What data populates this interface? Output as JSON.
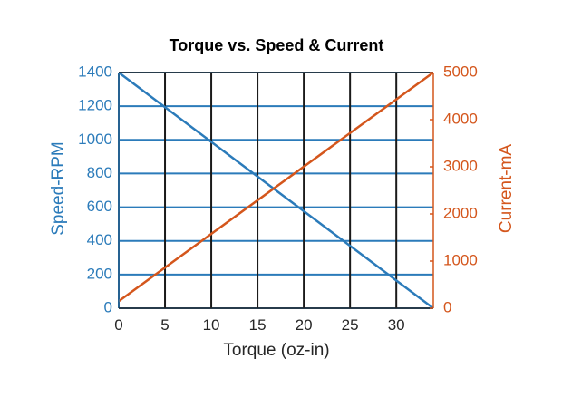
{
  "chart_data": {
    "type": "line",
    "title": "Torque vs. Speed & Current",
    "xlabel": "Torque (oz-in)",
    "ylabel_left": "Speed-RPM",
    "ylabel_right": "Current-mA",
    "xlim": [
      0,
      34
    ],
    "ylim_left": [
      0,
      1400
    ],
    "ylim_right": [
      0,
      5000
    ],
    "x_ticks": [
      "0",
      "5",
      "10",
      "15",
      "20",
      "25",
      "30"
    ],
    "y_ticks_left": [
      "0",
      "200",
      "400",
      "600",
      "800",
      "1000",
      "1200",
      "1400"
    ],
    "y_ticks_right": [
      "0",
      "1000",
      "2000",
      "3000",
      "4000",
      "5000"
    ],
    "grid": true,
    "series": [
      {
        "axis": "left",
        "color": "#2b7bba",
        "x": [
          0,
          34
        ],
        "y": [
          1400,
          0
        ]
      },
      {
        "axis": "right",
        "color": "#d4561c",
        "x": [
          0,
          34
        ],
        "y": [
          150,
          5000
        ]
      }
    ],
    "colors": {
      "left_axis": "#2b7bba",
      "right_axis": "#d4561c",
      "grid_vertical": "#1a1a1a",
      "grid_horizontal": "#2b7bba"
    }
  }
}
